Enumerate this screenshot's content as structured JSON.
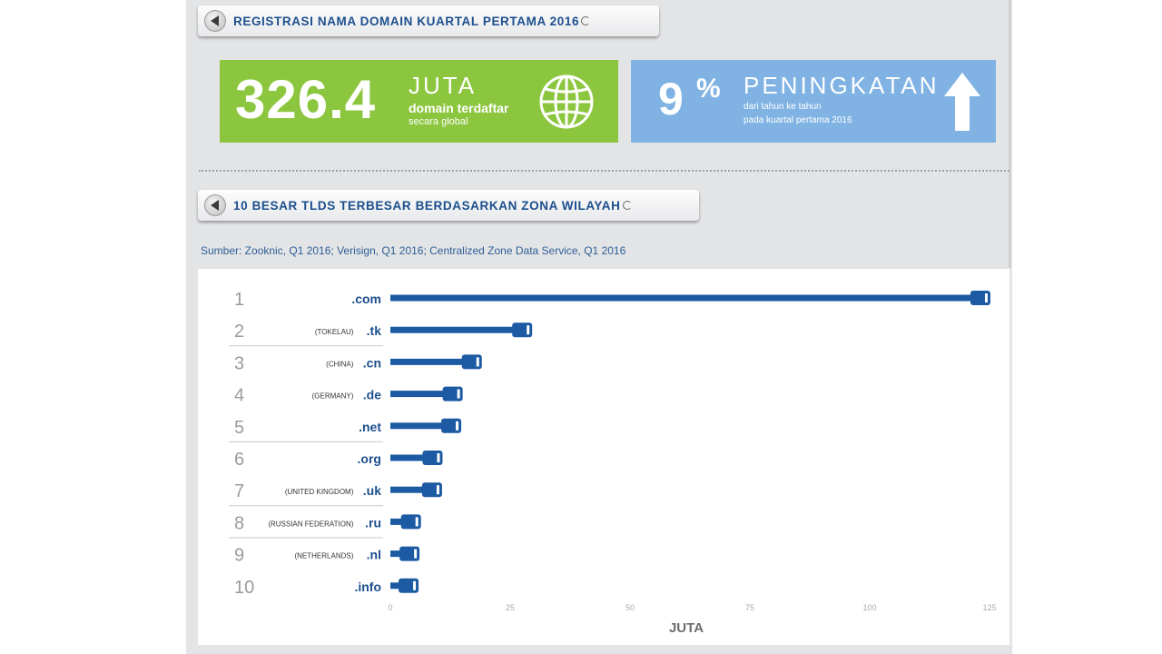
{
  "header1": {
    "title": "REGISTRASI NAMA DOMAIN KUARTAL PERTAMA 2016"
  },
  "stat_green": {
    "value": "326.4",
    "unit": "JUTA",
    "line1": "domain terdaftar",
    "line2": "secara global"
  },
  "stat_blue": {
    "value": "9",
    "sign": "%",
    "label": "PENINGKATAN",
    "line1": "dari tahun ke tahun",
    "line2": "pada kuartal pertama 2016"
  },
  "header2": {
    "title": "10 BESAR TLDS TERBESAR BERDASARKAN ZONA WILAYAH"
  },
  "source": "Sumber: Zooknic, Q1 2016; Verisign, Q1 2016; Centralized Zone Data Service, Q1 2016",
  "chart_data": {
    "type": "bar",
    "orientation": "horizontal",
    "title": "10 BESAR TLDS TERBESAR BERDASARKAN ZONA WILAYAH",
    "xlabel": "JUTA",
    "xlim": [
      0,
      125
    ],
    "xticks": [
      0,
      25,
      50,
      75,
      100,
      125
    ],
    "ranks": [
      "1",
      "2",
      "3",
      "4",
      "5",
      "6",
      "7",
      "8",
      "9",
      "10"
    ],
    "countries": [
      "",
      "(TOKELAU)",
      "(CHINA)",
      "(GERMANY)",
      "",
      "",
      "(UNITED KINGDOM)",
      "(RUSSIAN FEDERATION)",
      "(NETHERLANDS)",
      ""
    ],
    "categories": [
      ".com",
      ".tk",
      ".cn",
      ".de",
      ".net",
      ".org",
      ".uk",
      ".ru",
      ".nl",
      ".info"
    ],
    "values": [
      123.1,
      27.5,
      17.0,
      13.0,
      12.7,
      8.8,
      8.7,
      4.3,
      4.0,
      3.8
    ],
    "bar_color": "#1c5aa3"
  }
}
